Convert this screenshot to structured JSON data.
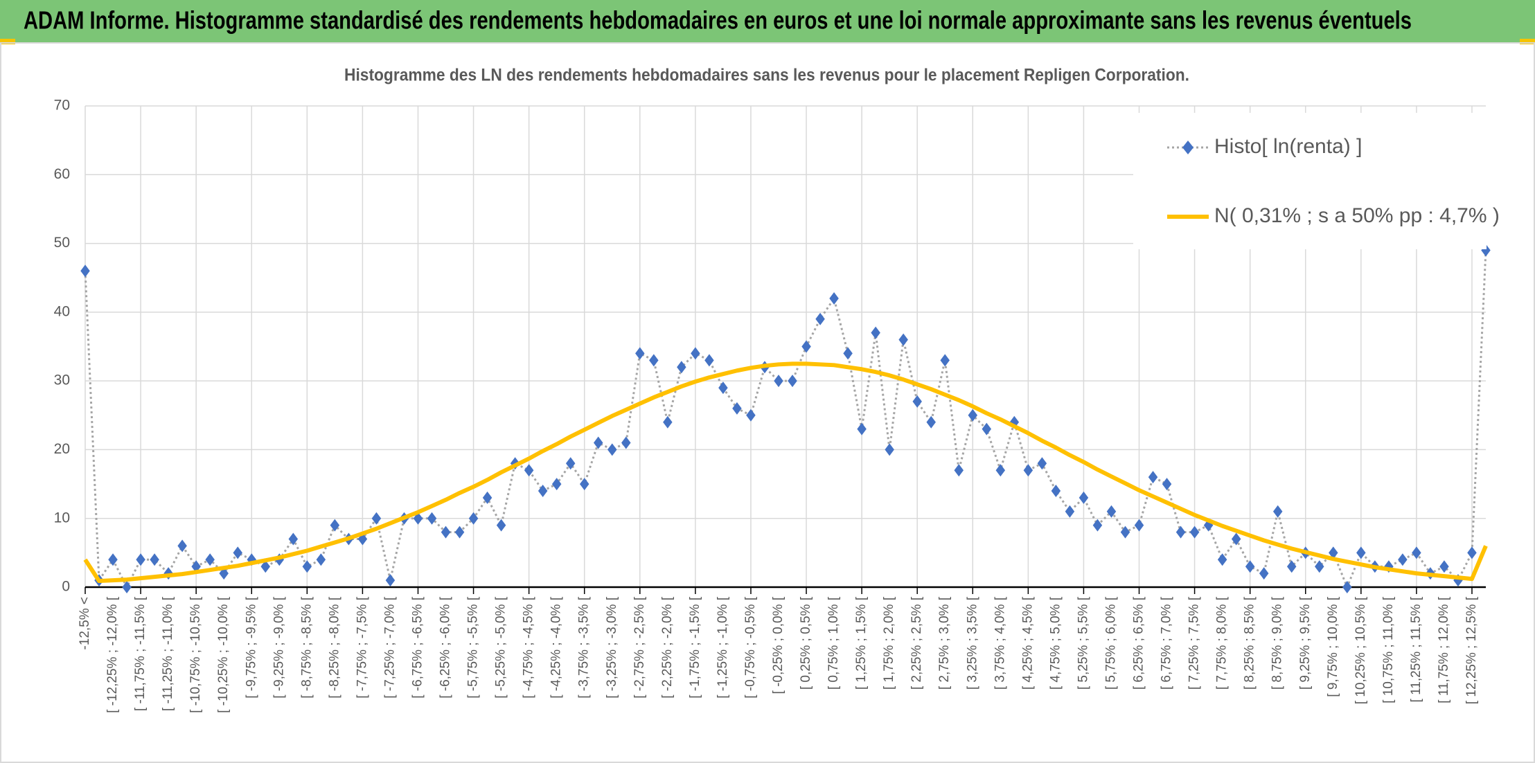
{
  "header": {
    "title": "ADAM Informe. Histogramme standardisé des rendements hebdomadaires en euros et une loi normale approximante sans les revenus éventuels"
  },
  "chart_data": {
    "type": "line",
    "title": "Histogramme des LN des rendements hebdomadaires sans les revenus pour le placement Repligen Corporation.",
    "categories": [
      "-12,5% <",
      null,
      "[ -12,25% ; -12,0% [",
      null,
      "[ -11,75% ; -11,5% [",
      null,
      "[ -11,25% ; -11,0% [",
      null,
      "[ -10,75% ; -10,5% [",
      null,
      "[ -10,25% ; -10,0% [",
      null,
      "[ -9,75% ; -9,5% [",
      null,
      "[ -9,25% ; -9,0% [",
      null,
      "[ -8,75% ; -8,5% [",
      null,
      "[ -8,25% ; -8,0% [",
      null,
      "[ -7,75% ; -7,5% [",
      null,
      "[ -7,25% ; -7,0% [",
      null,
      "[ -6,75% ; -6,5% [",
      null,
      "[ -6,25% ; -6,0% [",
      null,
      "[ -5,75% ; -5,5% [",
      null,
      "[ -5,25% ; -5,0% [",
      null,
      "[ -4,75% ; -4,5% [",
      null,
      "[ -4,25% ; -4,0% [",
      null,
      "[ -3,75% ; -3,5% [",
      null,
      "[ -3,25% ; -3,0% [",
      null,
      "[ -2,75% ; -2,5% [",
      null,
      "[ -2,25% ; -2,0% [",
      null,
      "[ -1,75% ; -1,5% [",
      null,
      "[ -1,25% ; -1,0% [",
      null,
      "[ -0,75% ; -0,5% [",
      null,
      "[ -0,25% ; 0,0% [",
      null,
      "[ 0,25% ; 0,5% [",
      null,
      "[ 0,75% ; 1,0% [",
      null,
      "[ 1,25% ; 1,5% [",
      null,
      "[ 1,75% ; 2,0% [",
      null,
      "[ 2,25% ; 2,5% [",
      null,
      "[ 2,75% ; 3,0% [",
      null,
      "[ 3,25% ; 3,5% [",
      null,
      "[ 3,75% ; 4,0% [",
      null,
      "[ 4,25% ; 4,5% [",
      null,
      "[ 4,75% ; 5,0% [",
      null,
      "[ 5,25% ; 5,5% [",
      null,
      "[ 5,75% ; 6,0% [",
      null,
      "[ 6,25% ; 6,5% [",
      null,
      "[ 6,75% ; 7,0% [",
      null,
      "[ 7,25% ; 7,5% [",
      null,
      "[ 7,75% ; 8,0% [",
      null,
      "[ 8,25% ; 8,5% [",
      null,
      "[ 8,75% ; 9,0% [",
      null,
      "[ 9,25% ; 9,5% [",
      null,
      "[ 9,75% ; 10,0% [",
      null,
      "[ 10,25% ; 10,5% [",
      null,
      "[ 10,75% ; 11,0% [",
      null,
      "[ 11,25% ; 11,5% [",
      null,
      "[ 11,75% ; 12,0% [",
      null,
      "[ 12,25% ; 12,5% [",
      null
    ],
    "series": [
      {
        "name": "Histo[ ln(renta) ]",
        "color": "#4472c4",
        "line_color": "#a5a5a5",
        "marker": "diamond",
        "values": [
          46,
          1,
          4,
          0,
          4,
          4,
          2,
          6,
          3,
          4,
          2,
          5,
          4,
          3,
          4,
          7,
          3,
          4,
          9,
          7,
          7,
          10,
          1,
          10,
          10,
          10,
          8,
          8,
          10,
          13,
          9,
          18,
          17,
          14,
          15,
          18,
          15,
          21,
          20,
          21,
          34,
          33,
          24,
          32,
          34,
          33,
          29,
          26,
          25,
          32,
          30,
          30,
          35,
          39,
          42,
          34,
          23,
          37,
          20,
          36,
          27,
          24,
          33,
          17,
          25,
          23,
          17,
          24,
          17,
          18,
          14,
          11,
          13,
          9,
          11,
          8,
          9,
          16,
          15,
          8,
          8,
          9,
          4,
          7,
          3,
          2,
          11,
          3,
          5,
          3,
          5,
          0,
          5,
          3,
          3,
          4,
          5,
          2,
          3,
          1,
          5,
          49
        ]
      },
      {
        "name": "N( 0,31% ; s a 50% pp : 4,7% )",
        "color": "#ffc000",
        "values": [
          4,
          0.9,
          1.0,
          1.1,
          1.3,
          1.5,
          1.7,
          1.9,
          2.2,
          2.5,
          2.8,
          3.1,
          3.5,
          3.9,
          4.3,
          4.8,
          5.3,
          5.9,
          6.5,
          7.1,
          7.8,
          8.5,
          9.3,
          10.1,
          10.9,
          11.8,
          12.7,
          13.7,
          14.6,
          15.6,
          16.7,
          17.7,
          18.7,
          19.8,
          20.8,
          21.9,
          22.9,
          23.9,
          24.9,
          25.8,
          26.7,
          27.6,
          28.4,
          29.2,
          29.9,
          30.5,
          31.0,
          31.5,
          31.9,
          32.2,
          32.4,
          32.5,
          32.5,
          32.4,
          32.3,
          32.0,
          31.7,
          31.3,
          30.8,
          30.2,
          29.5,
          28.8,
          28.0,
          27.2,
          26.3,
          25.3,
          24.4,
          23.4,
          22.4,
          21.3,
          20.3,
          19.2,
          18.2,
          17.1,
          16.1,
          15.1,
          14.1,
          13.2,
          12.3,
          11.4,
          10.5,
          9.7,
          8.9,
          8.2,
          7.5,
          6.8,
          6.2,
          5.6,
          5.1,
          4.6,
          4.1,
          3.7,
          3.3,
          2.9,
          2.6,
          2.3,
          2.0,
          1.8,
          1.6,
          1.4,
          1.2,
          6
        ]
      }
    ],
    "ylim": [
      0,
      70
    ],
    "yticks": [
      0,
      10,
      20,
      30,
      40,
      50,
      60,
      70
    ],
    "grid": true,
    "legend": "upper right"
  }
}
